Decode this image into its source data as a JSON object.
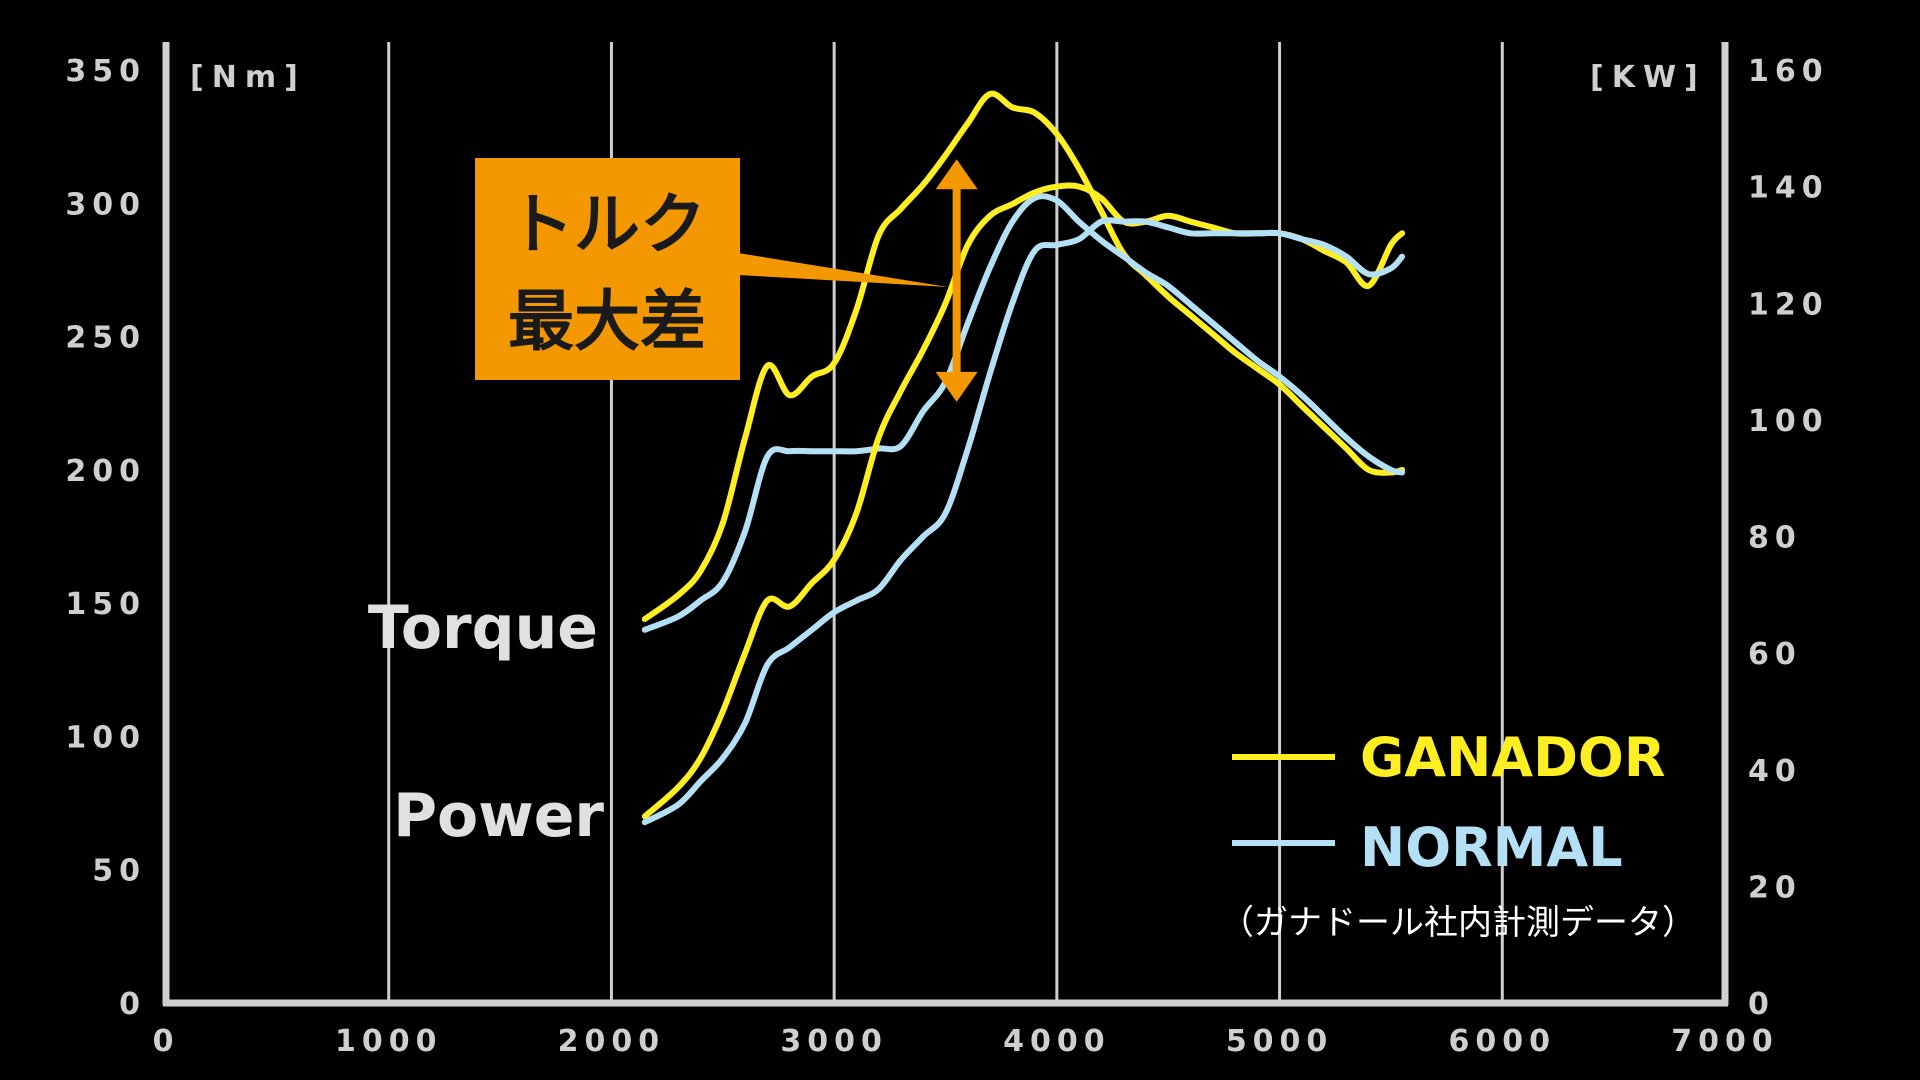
{
  "chart_data": {
    "type": "line",
    "x_ticks": [
      0,
      1000,
      2000,
      3000,
      4000,
      5000,
      6000,
      7000
    ],
    "xlim": [
      0,
      7000
    ],
    "y_left_ticks": [
      0,
      50,
      100,
      150,
      200,
      250,
      300,
      350
    ],
    "y_left_lim": [
      0,
      350
    ],
    "y_left_unit": "[Nm]",
    "y_right_ticks": [
      0,
      20,
      40,
      60,
      80,
      100,
      120,
      140,
      160
    ],
    "y_right_lim": [
      0,
      160
    ],
    "y_right_unit": "[KW]",
    "grid": "vertical",
    "curve_labels": {
      "torque": "Torque",
      "power": "Power"
    },
    "legend": [
      {
        "name": "GANADOR",
        "color": "#ffee22"
      },
      {
        "name": "NORMAL",
        "color": "#b4e0f6"
      }
    ],
    "legend_position": "bottom-right",
    "note": "（ガナドール社内計測データ）",
    "callout": {
      "lines": [
        "トルク",
        "最大差"
      ],
      "rpm": 3550,
      "torque_top": 315,
      "torque_bottom": 227,
      "color": "#f39800"
    },
    "series": [
      {
        "name": "GANADOR",
        "quantity": "torque",
        "axis": "left",
        "color": "#ffee22",
        "x": [
          2150,
          2300,
          2400,
          2500,
          2600,
          2700,
          2800,
          2900,
          3000,
          3100,
          3200,
          3300,
          3400,
          3500,
          3600,
          3700,
          3800,
          3900,
          4000,
          4100,
          4200,
          4300,
          4400,
          4500,
          4600,
          4700,
          4800,
          4900,
          5000,
          5100,
          5200,
          5300,
          5400,
          5500,
          5550
        ],
        "y": [
          144,
          153,
          162,
          180,
          212,
          239,
          228,
          235,
          240,
          260,
          288,
          298,
          307,
          318,
          330,
          341,
          336,
          334,
          326,
          313,
          297,
          281,
          273,
          265,
          258,
          251,
          244,
          238,
          232,
          224,
          216,
          208,
          200,
          199,
          200
        ]
      },
      {
        "name": "NORMAL",
        "quantity": "torque",
        "axis": "left",
        "color": "#b4e0f6",
        "x": [
          2150,
          2300,
          2400,
          2500,
          2600,
          2700,
          2800,
          2900,
          3000,
          3100,
          3200,
          3300,
          3400,
          3500,
          3600,
          3700,
          3800,
          3900,
          4000,
          4100,
          4200,
          4300,
          4400,
          4500,
          4600,
          4700,
          4800,
          4900,
          5000,
          5100,
          5200,
          5300,
          5400,
          5500,
          5550
        ],
        "y": [
          140,
          145,
          151,
          158,
          177,
          205,
          207,
          207,
          207,
          207,
          208,
          209,
          222,
          233,
          255,
          276,
          293,
          302,
          301,
          293,
          286,
          280,
          274,
          269,
          262,
          255,
          248,
          241,
          235,
          228,
          220,
          212,
          205,
          200,
          199
        ]
      },
      {
        "name": "GANADOR",
        "quantity": "power",
        "axis": "right",
        "color": "#ffee22",
        "x": [
          2150,
          2300,
          2400,
          2500,
          2600,
          2700,
          2800,
          2900,
          3000,
          3100,
          3200,
          3300,
          3400,
          3500,
          3600,
          3700,
          3800,
          3900,
          4000,
          4100,
          4200,
          4300,
          4400,
          4500,
          4600,
          4700,
          4800,
          4900,
          5000,
          5100,
          5200,
          5300,
          5400,
          5500,
          5550
        ],
        "y": [
          32,
          37,
          42,
          50,
          60,
          69,
          68,
          72,
          76,
          84,
          97,
          105,
          112,
          120,
          130,
          135,
          137,
          139,
          140,
          140,
          138,
          134,
          134,
          135,
          134,
          133,
          132,
          132,
          132,
          131,
          129,
          127,
          123,
          130,
          132
        ]
      },
      {
        "name": "NORMAL",
        "quantity": "power",
        "axis": "right",
        "color": "#b4e0f6",
        "x": [
          2150,
          2300,
          2400,
          2500,
          2600,
          2700,
          2800,
          2900,
          3000,
          3100,
          3200,
          3300,
          3400,
          3500,
          3600,
          3700,
          3800,
          3900,
          4000,
          4100,
          4200,
          4300,
          4400,
          4500,
          4600,
          4700,
          4800,
          4900,
          5000,
          5100,
          5200,
          5300,
          5400,
          5500,
          5550
        ],
        "y": [
          31,
          34,
          38,
          42,
          48,
          58,
          61,
          64,
          67,
          69,
          71,
          76,
          80,
          84,
          95,
          108,
          120,
          129,
          130,
          131,
          134,
          134,
          134,
          133,
          132,
          132,
          132,
          132,
          132,
          131,
          130,
          128,
          125,
          126,
          128
        ]
      }
    ]
  }
}
